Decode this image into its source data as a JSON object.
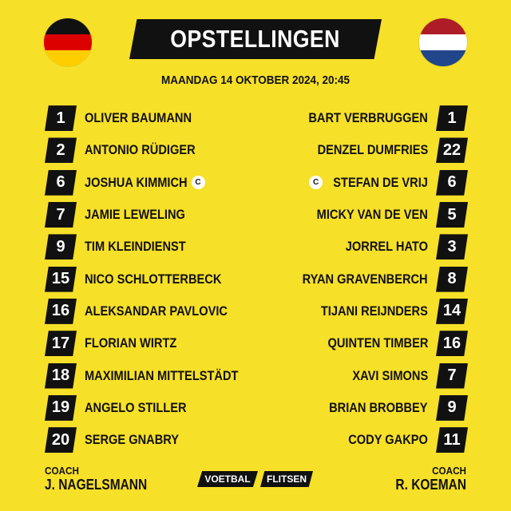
{
  "header": {
    "title": "OPSTELLINGEN",
    "date": "MAANDAG 14 OKTOBER 2024, 20:45",
    "home_flag": {
      "icon": "germany-flag-icon",
      "colors": [
        "#111111",
        "#dd0000",
        "#ffce00"
      ]
    },
    "away_flag": {
      "icon": "netherlands-flag-icon",
      "colors": [
        "#ae1c28",
        "#ffffff",
        "#21468b"
      ]
    }
  },
  "home": {
    "players": [
      {
        "number": "1",
        "name": "OLIVER BAUMANN",
        "captain": false
      },
      {
        "number": "2",
        "name": "ANTONIO RÜDIGER",
        "captain": false
      },
      {
        "number": "6",
        "name": "JOSHUA KIMMICH",
        "captain": true
      },
      {
        "number": "7",
        "name": "JAMIE LEWELING",
        "captain": false
      },
      {
        "number": "9",
        "name": "TIM KLEINDIENST",
        "captain": false
      },
      {
        "number": "15",
        "name": "NICO SCHLOTTERBECK",
        "captain": false
      },
      {
        "number": "16",
        "name": "ALEKSANDAR PAVLOVIC",
        "captain": false
      },
      {
        "number": "17",
        "name": "FLORIAN WIRTZ",
        "captain": false
      },
      {
        "number": "18",
        "name": "MAXIMILIAN MITTELSTÄDT",
        "captain": false
      },
      {
        "number": "19",
        "name": "ANGELO STILLER",
        "captain": false
      },
      {
        "number": "20",
        "name": "SERGE GNABRY",
        "captain": false
      }
    ],
    "coach_label": "COACH",
    "coach_name": "J. NAGELSMANN"
  },
  "away": {
    "players": [
      {
        "number": "1",
        "name": "BART VERBRUGGEN",
        "captain": false
      },
      {
        "number": "22",
        "name": "DENZEL DUMFRIES",
        "captain": false
      },
      {
        "number": "6",
        "name": "STEFAN DE VRIJ",
        "captain": true
      },
      {
        "number": "5",
        "name": "MICKY VAN DE VEN",
        "captain": false
      },
      {
        "number": "3",
        "name": "JORREL HATO",
        "captain": false
      },
      {
        "number": "8",
        "name": "RYAN GRAVENBERCH",
        "captain": false
      },
      {
        "number": "14",
        "name": "TIJANI REIJNDERS",
        "captain": false
      },
      {
        "number": "16",
        "name": "QUINTEN TIMBER",
        "captain": false
      },
      {
        "number": "7",
        "name": "XAVI SIMONS",
        "captain": false
      },
      {
        "number": "9",
        "name": "BRIAN BROBBEY",
        "captain": false
      },
      {
        "number": "11",
        "name": "CODY GAKPO",
        "captain": false
      }
    ],
    "coach_label": "COACH",
    "coach_name": "R. KOEMAN"
  },
  "captain_mark": "C",
  "brand": {
    "part1": "VOETBAL",
    "part2": "FLITSEN"
  },
  "colors": {
    "background": "#f7e028",
    "badge": "#111111",
    "badge_text": "#ffffff"
  }
}
